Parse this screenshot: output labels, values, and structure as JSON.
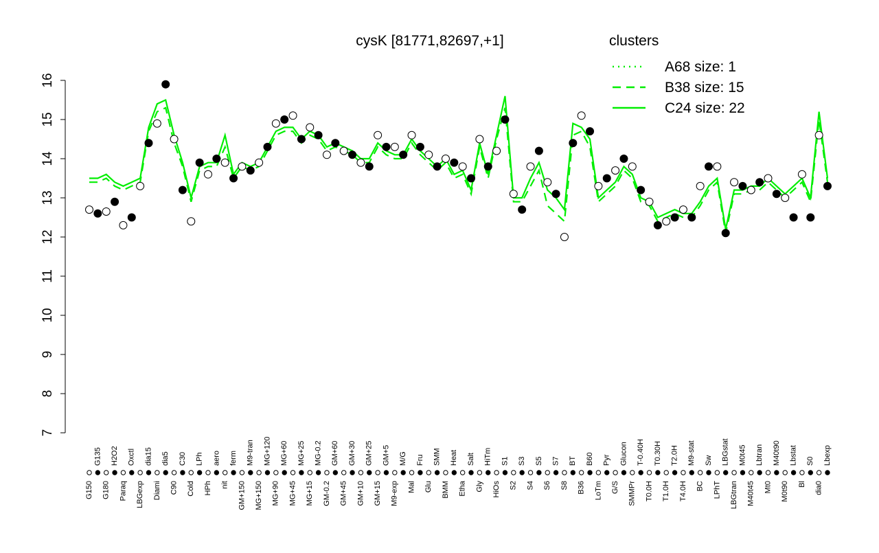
{
  "chart_data": {
    "type": "line",
    "title": "cysK [81771,82697,+1]",
    "categories": [
      "G150",
      "G135",
      "G180",
      "H2O2",
      "Paraq",
      "Oxctl",
      "LBGexp",
      "dia15",
      "Diami",
      "dia5",
      "C90",
      "C30",
      "Cold",
      "LPh",
      "HPh",
      "aero",
      "nit",
      "ferm",
      "GM+150",
      "M9-tran",
      "MG+150",
      "MG+120",
      "MG+90",
      "MG+60",
      "MG+45",
      "MG+25",
      "MG+15",
      "MG-0.2",
      "GM-0.2",
      "GM+60",
      "GM+45",
      "GM+30",
      "GM+10",
      "GM+25",
      "GM+15",
      "GM+5",
      "M9-exp",
      "M/G",
      "Mal",
      "Fru",
      "Glu",
      "SMM",
      "BMM",
      "Heat",
      "Etha",
      "Salt",
      "Gly",
      "HiTm",
      "HiOs",
      "S1",
      "S2",
      "S3",
      "S4",
      "S5",
      "S6",
      "S7",
      "S8",
      "BT",
      "B36",
      "B60",
      "LoTm",
      "Pyr",
      "G/S",
      "Glucon",
      "SMMPr",
      "T-0.40H",
      "T0.0H",
      "T0.30H",
      "T1.0H",
      "T2.0H",
      "T4.0H",
      "M9-stat",
      "BC",
      "Sw",
      "LPhT",
      "LBGstat",
      "LBGtran",
      "M0t45",
      "M40t45",
      "Lbtran",
      "Mt0",
      "M40t90",
      "M0t90",
      "Lbstat",
      "Bl",
      "S0",
      "dia0",
      "Lbexp"
    ],
    "values": [
      12.7,
      12.6,
      12.65,
      12.9,
      12.3,
      12.5,
      13.3,
      14.4,
      14.9,
      15.9,
      14.5,
      13.2,
      12.4,
      13.9,
      13.6,
      14.0,
      13.9,
      13.5,
      13.8,
      13.7,
      13.9,
      14.3,
      14.9,
      15.0,
      15.1,
      14.5,
      14.8,
      14.6,
      14.1,
      14.4,
      14.2,
      14.1,
      13.9,
      13.8,
      14.6,
      14.3,
      14.3,
      14.1,
      14.6,
      14.3,
      14.1,
      13.8,
      14.0,
      13.9,
      13.8,
      13.5,
      14.5,
      13.8,
      14.2,
      15.0,
      13.1,
      12.7,
      13.8,
      14.2,
      13.4,
      13.1,
      12.0,
      14.4,
      15.1,
      14.7,
      13.3,
      13.5,
      13.7,
      14.0,
      13.8,
      13.2,
      12.9,
      12.3,
      12.4,
      12.5,
      12.7,
      12.5,
      13.3,
      13.8,
      13.8,
      12.1,
      13.4,
      13.3,
      13.2,
      13.4,
      13.5,
      13.1,
      13.0,
      12.5,
      13.6,
      12.5,
      14.6,
      13.3
    ],
    "point_color": "#000000",
    "series": [
      {
        "name": "A68 size: 1",
        "color": "#00ee00",
        "dash": "dotted"
      },
      {
        "name": "B38 size: 15",
        "color": "#00ee00",
        "dash": "dashed",
        "values": [
          13.4,
          13.4,
          13.5,
          13.3,
          13.2,
          13.3,
          13.4,
          14.7,
          15.2,
          15.3,
          14.4,
          13.8,
          12.9,
          13.7,
          13.8,
          13.8,
          14.3,
          13.5,
          13.8,
          13.7,
          13.8,
          14.2,
          14.6,
          14.7,
          14.7,
          14.4,
          14.6,
          14.5,
          14.2,
          14.3,
          14.2,
          14.1,
          13.9,
          13.9,
          14.3,
          14.1,
          14.0,
          14.0,
          14.4,
          14.1,
          13.9,
          13.7,
          13.9,
          13.5,
          13.6,
          13.1,
          14.3,
          13.5,
          14.5,
          15.3,
          12.9,
          12.9,
          13.3,
          13.7,
          12.8,
          12.6,
          12.4,
          14.6,
          14.7,
          14.3,
          12.9,
          13.1,
          13.3,
          13.7,
          13.5,
          12.9,
          12.8,
          12.4,
          12.5,
          12.6,
          12.5,
          12.5,
          12.8,
          13.2,
          13.4,
          12.1,
          13.1,
          13.1,
          13.2,
          13.2,
          13.4,
          13.2,
          13.0,
          13.2,
          13.4,
          12.9,
          15.0,
          13.4
        ]
      },
      {
        "name": "C24 size: 22",
        "color": "#00ee00",
        "dash": "solid",
        "values": [
          13.5,
          13.5,
          13.6,
          13.4,
          13.3,
          13.4,
          13.5,
          14.8,
          15.4,
          15.5,
          14.6,
          13.9,
          13.0,
          13.8,
          13.9,
          13.9,
          14.6,
          13.6,
          13.9,
          13.8,
          13.9,
          14.3,
          14.7,
          14.8,
          14.8,
          14.5,
          14.7,
          14.6,
          14.3,
          14.4,
          14.3,
          14.2,
          14.0,
          14.0,
          14.4,
          14.2,
          14.1,
          14.1,
          14.5,
          14.2,
          14.0,
          13.8,
          14.0,
          13.6,
          13.7,
          13.2,
          14.4,
          13.6,
          14.6,
          15.6,
          13.0,
          13.0,
          13.5,
          13.9,
          13.2,
          13.0,
          12.7,
          14.9,
          14.8,
          14.5,
          13.0,
          13.2,
          13.4,
          13.8,
          13.6,
          13.0,
          12.9,
          12.5,
          12.6,
          12.7,
          12.6,
          12.6,
          12.9,
          13.3,
          13.5,
          12.2,
          13.2,
          13.2,
          13.3,
          13.3,
          13.5,
          13.3,
          13.1,
          13.3,
          13.5,
          13.0,
          15.2,
          13.5
        ]
      }
    ],
    "legend_title": "clusters",
    "legend_position": "top-right",
    "ylim": [
      7,
      16
    ],
    "yticks": [
      7,
      8,
      9,
      10,
      11,
      12,
      13,
      14,
      15,
      16
    ]
  }
}
